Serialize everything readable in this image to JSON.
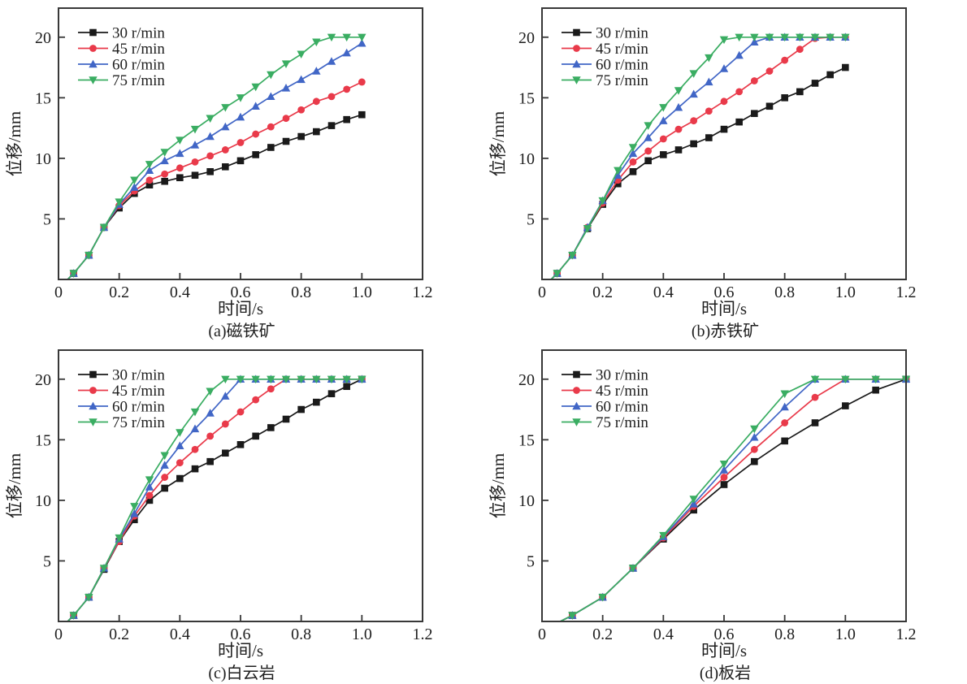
{
  "figure": {
    "background_color": "#ffffff",
    "frame_color": "#383838",
    "text_color": "#1f1f1f"
  },
  "chart_data": [
    {
      "id": "a",
      "type": "line",
      "caption": "(a)磁铁矿",
      "xlabel": "时间/s",
      "ylabel": "位移/mm",
      "xlim": [
        0,
        1.2
      ],
      "ylim": [
        0,
        22.4
      ],
      "xticks": [
        0,
        0.2,
        0.4,
        0.6,
        0.8,
        1.0,
        1.2
      ],
      "xtick_labels": [
        "0",
        "0.2",
        "0.4",
        "0.6",
        "0.8",
        "1.0",
        "1.2"
      ],
      "yticks": [
        5,
        10,
        15,
        20
      ],
      "ytick_labels": [
        "5",
        "10",
        "15",
        "20"
      ],
      "grid": false,
      "legend_position": "top-left",
      "line_origin_x": 0.03,
      "x": [
        0.05,
        0.1,
        0.15,
        0.2,
        0.25,
        0.3,
        0.35,
        0.4,
        0.45,
        0.5,
        0.55,
        0.6,
        0.65,
        0.7,
        0.75,
        0.8,
        0.85,
        0.9,
        0.95,
        1.0
      ],
      "series": [
        {
          "name": "30 r/min",
          "color": "#1a1a1a",
          "marker": "square",
          "values": [
            0.5,
            2.0,
            4.3,
            5.9,
            7.1,
            7.8,
            8.1,
            8.4,
            8.6,
            8.9,
            9.3,
            9.8,
            10.3,
            10.9,
            11.4,
            11.8,
            12.2,
            12.7,
            13.2,
            13.6
          ]
        },
        {
          "name": "45 r/min",
          "color": "#e93a4a",
          "marker": "circle",
          "values": [
            0.5,
            2.0,
            4.3,
            6.1,
            7.3,
            8.2,
            8.7,
            9.2,
            9.7,
            10.2,
            10.7,
            11.3,
            12.0,
            12.6,
            13.3,
            14.0,
            14.7,
            15.1,
            15.7,
            16.3
          ]
        },
        {
          "name": "60 r/min",
          "color": "#4166c6",
          "marker": "triangle-up",
          "values": [
            0.5,
            2.0,
            4.3,
            6.2,
            7.6,
            9.0,
            9.8,
            10.4,
            11.1,
            11.8,
            12.6,
            13.4,
            14.3,
            15.1,
            15.8,
            16.5,
            17.2,
            18.0,
            18.7,
            19.5
          ]
        },
        {
          "name": "75 r/min",
          "color": "#3aad62",
          "marker": "triangle-down",
          "values": [
            0.5,
            2.0,
            4.3,
            6.4,
            8.2,
            9.5,
            10.5,
            11.5,
            12.4,
            13.3,
            14.2,
            15.0,
            15.9,
            16.9,
            17.8,
            18.6,
            19.6,
            20.0,
            20.0,
            20.0
          ]
        }
      ]
    },
    {
      "id": "b",
      "type": "line",
      "caption": "(b)赤铁矿",
      "xlabel": "时间/s",
      "ylabel": "位移/mm",
      "xlim": [
        0,
        1.2
      ],
      "ylim": [
        0,
        22.4
      ],
      "xticks": [
        0,
        0.2,
        0.4,
        0.6,
        0.8,
        1.0,
        1.2
      ],
      "xtick_labels": [
        "0",
        "0.2",
        "0.4",
        "0.6",
        "0.8",
        "1.0",
        "1.2"
      ],
      "yticks": [
        5,
        10,
        15,
        20
      ],
      "ytick_labels": [
        "5",
        "10",
        "15",
        "20"
      ],
      "grid": false,
      "legend_position": "top-left",
      "line_origin_x": 0.03,
      "x": [
        0.05,
        0.1,
        0.15,
        0.2,
        0.25,
        0.3,
        0.35,
        0.4,
        0.45,
        0.5,
        0.55,
        0.6,
        0.65,
        0.7,
        0.75,
        0.8,
        0.85,
        0.9,
        0.95,
        1.0
      ],
      "series": [
        {
          "name": "30 r/min",
          "color": "#1a1a1a",
          "marker": "square",
          "values": [
            0.5,
            2.0,
            4.2,
            6.2,
            7.9,
            8.9,
            9.8,
            10.3,
            10.7,
            11.2,
            11.7,
            12.4,
            13.0,
            13.7,
            14.3,
            15.0,
            15.5,
            16.2,
            16.9,
            17.5
          ]
        },
        {
          "name": "45 r/min",
          "color": "#e93a4a",
          "marker": "circle",
          "values": [
            0.5,
            2.0,
            4.3,
            6.3,
            8.2,
            9.7,
            10.6,
            11.6,
            12.4,
            13.1,
            13.9,
            14.7,
            15.5,
            16.4,
            17.2,
            18.1,
            19.0,
            19.9,
            20.0,
            20.0
          ]
        },
        {
          "name": "60 r/min",
          "color": "#4166c6",
          "marker": "triangle-up",
          "values": [
            0.5,
            2.0,
            4.3,
            6.5,
            8.6,
            10.4,
            11.7,
            13.1,
            14.2,
            15.3,
            16.3,
            17.4,
            18.5,
            19.6,
            20.0,
            20.0,
            20.0,
            20.0,
            20.0,
            20.0
          ]
        },
        {
          "name": "75 r/min",
          "color": "#3aad62",
          "marker": "triangle-down",
          "values": [
            0.5,
            2.0,
            4.2,
            6.5,
            9.0,
            10.9,
            12.7,
            14.2,
            15.6,
            17.0,
            18.3,
            19.8,
            20.0,
            20.0,
            20.0,
            20.0,
            20.0,
            20.0,
            20.0,
            20.0
          ]
        }
      ]
    },
    {
      "id": "c",
      "type": "line",
      "caption": "(c)白云岩",
      "xlabel": "时间/s",
      "ylabel": "位移/mm",
      "xlim": [
        0,
        1.2
      ],
      "ylim": [
        0,
        22.4
      ],
      "xticks": [
        0,
        0.2,
        0.4,
        0.6,
        0.8,
        1.0,
        1.2
      ],
      "xtick_labels": [
        "0",
        "0.2",
        "0.4",
        "0.6",
        "0.8",
        "1.0",
        "1.2"
      ],
      "yticks": [
        5,
        10,
        15,
        20
      ],
      "ytick_labels": [
        "5",
        "10",
        "15",
        "20"
      ],
      "grid": false,
      "legend_position": "top-left",
      "line_origin_x": 0.03,
      "x": [
        0.05,
        0.1,
        0.15,
        0.2,
        0.25,
        0.3,
        0.35,
        0.4,
        0.45,
        0.5,
        0.55,
        0.6,
        0.65,
        0.7,
        0.75,
        0.8,
        0.85,
        0.9,
        0.95,
        1.0
      ],
      "series": [
        {
          "name": "30 r/min",
          "color": "#1a1a1a",
          "marker": "square",
          "values": [
            0.5,
            2.0,
            4.3,
            6.6,
            8.4,
            10.0,
            11.0,
            11.8,
            12.6,
            13.2,
            13.9,
            14.6,
            15.3,
            16.0,
            16.7,
            17.5,
            18.1,
            18.8,
            19.4,
            20.0
          ]
        },
        {
          "name": "45 r/min",
          "color": "#e93a4a",
          "marker": "circle",
          "values": [
            0.5,
            2.0,
            4.4,
            6.6,
            8.7,
            10.4,
            11.9,
            13.1,
            14.2,
            15.3,
            16.3,
            17.3,
            18.3,
            19.2,
            20.0,
            20.0,
            20.0,
            20.0,
            20.0,
            20.0
          ]
        },
        {
          "name": "60 r/min",
          "color": "#4166c6",
          "marker": "triangle-up",
          "values": [
            0.5,
            2.0,
            4.4,
            6.8,
            8.9,
            11.1,
            12.9,
            14.5,
            15.9,
            17.2,
            18.6,
            20.0,
            20.0,
            20.0,
            20.0,
            20.0,
            20.0,
            20.0,
            20.0,
            20.0
          ]
        },
        {
          "name": "75 r/min",
          "color": "#3aad62",
          "marker": "triangle-down",
          "values": [
            0.5,
            2.0,
            4.4,
            6.9,
            9.5,
            11.7,
            13.7,
            15.6,
            17.3,
            19.0,
            20.0,
            20.0,
            20.0,
            20.0,
            20.0,
            20.0,
            20.0,
            20.0,
            20.0,
            20.0
          ]
        }
      ]
    },
    {
      "id": "d",
      "type": "line",
      "caption": "(d)板岩",
      "xlabel": "时间/s",
      "ylabel": "位移/mm",
      "xlim": [
        0,
        1.2
      ],
      "ylim": [
        0,
        22.4
      ],
      "xticks": [
        0,
        0.2,
        0.4,
        0.6,
        0.8,
        1.0,
        1.2
      ],
      "xtick_labels": [
        "0",
        "0.2",
        "0.4",
        "0.6",
        "0.8",
        "1.0",
        "1.2"
      ],
      "yticks": [
        5,
        10,
        15,
        20
      ],
      "ytick_labels": [
        "5",
        "10",
        "15",
        "20"
      ],
      "grid": false,
      "legend_position": "top-left",
      "line_origin_x": 0.06,
      "x": [
        0.1,
        0.2,
        0.3,
        0.4,
        0.5,
        0.6,
        0.7,
        0.8,
        0.9,
        1.0,
        1.1,
        1.2
      ],
      "series": [
        {
          "name": "30 r/min",
          "color": "#1a1a1a",
          "marker": "square",
          "values": [
            0.5,
            2.0,
            4.4,
            6.8,
            9.2,
            11.3,
            13.2,
            14.9,
            16.4,
            17.8,
            19.1,
            20.0
          ]
        },
        {
          "name": "45 r/min",
          "color": "#e93a4a",
          "marker": "circle",
          "values": [
            0.5,
            2.0,
            4.4,
            6.9,
            9.5,
            11.9,
            14.2,
            16.4,
            18.5,
            20.0,
            20.0,
            20.0
          ]
        },
        {
          "name": "60 r/min",
          "color": "#4166c6",
          "marker": "triangle-up",
          "values": [
            0.5,
            2.0,
            4.4,
            7.0,
            9.7,
            12.5,
            15.2,
            17.7,
            20.0,
            20.0,
            20.0,
            20.0
          ]
        },
        {
          "name": "75 r/min",
          "color": "#3aad62",
          "marker": "triangle-down",
          "values": [
            0.5,
            2.0,
            4.4,
            7.1,
            10.1,
            13.0,
            15.9,
            18.8,
            20.0,
            20.0,
            20.0,
            20.0
          ]
        }
      ]
    }
  ]
}
